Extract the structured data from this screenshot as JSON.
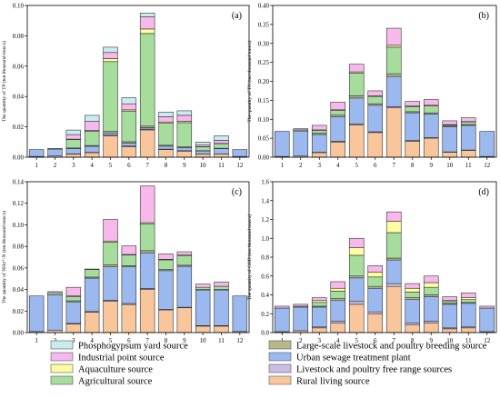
{
  "colors": {
    "Phosphogypsum yard source": "#c9ecf1",
    "Industrial point source": "#f7b8ec",
    "Aquaculture source": "#fdfda0",
    "Agricultural source": "#a6dd9d",
    "Large-scale livestock and poultry breeding source": "#b5b98a",
    "Urban sewage treatment plant": "#9bb8ef",
    "Livestock and poultry free range sources": "#cbbde4",
    "Rural living source": "#f9c59a"
  },
  "legend": [
    "Phosphogypsum yard source",
    "Industrial point source",
    "Aquaculture source",
    "Agricultural source",
    "Large-scale livestock and poultry breeding source",
    "Urban sewage treatment plant",
    "Livestock and poultry free range sources",
    "Rural living source"
  ],
  "chart_data": [
    {
      "type": "bar",
      "panel": "(a)",
      "ylabel": "The quantity of TP (ten thousand tons/a)",
      "categories": [
        "1",
        "2",
        "3",
        "4",
        "5",
        "6",
        "7",
        "8",
        "9",
        "10",
        "11",
        "12"
      ],
      "ylim": [
        0,
        0.1
      ],
      "yticks": [
        "0.00",
        "0.02",
        "0.04",
        "0.06",
        "0.08",
        "0.10"
      ],
      "yticks_v": [
        0,
        0.02,
        0.04,
        0.06,
        0.08,
        0.1
      ],
      "series": [
        {
          "name": "Rural living source",
          "values": [
            0.0005,
            0.0008,
            0.002,
            0.003,
            0.014,
            0.007,
            0.018,
            0.005,
            0.004,
            0.002,
            0.002,
            0.0005
          ]
        },
        {
          "name": "Livestock and poultry free range sources",
          "values": [
            0,
            0,
            0.0002,
            0.0002,
            0.0005,
            0.0004,
            0.0005,
            0.0003,
            0.0003,
            0.0001,
            0.0001,
            0
          ]
        },
        {
          "name": "Urban sewage treatment plant",
          "values": [
            0.0045,
            0.0045,
            0.0035,
            0.004,
            0.0015,
            0.002,
            0.001,
            0.002,
            0.002,
            0.002,
            0.0035,
            0.0045
          ]
        },
        {
          "name": "Large-scale livestock and poultry breeding source",
          "values": [
            0,
            0,
            0.0004,
            0.0005,
            0.001,
            0.0008,
            0.001,
            0.0006,
            0.0005,
            0.0002,
            0.0003,
            0
          ]
        },
        {
          "name": "Agricultural source",
          "values": [
            0,
            0.0005,
            0.0055,
            0.0095,
            0.046,
            0.02,
            0.061,
            0.0145,
            0.016,
            0.0025,
            0.003,
            0
          ]
        },
        {
          "name": "Aquaculture source",
          "values": [
            0,
            0,
            0.0003,
            0.0004,
            0.002,
            0.001,
            0.003,
            0.0008,
            0.0008,
            0.0002,
            0.0002,
            0
          ]
        },
        {
          "name": "Industrial point source",
          "values": [
            0,
            0,
            0.003,
            0.006,
            0.004,
            0.004,
            0.008,
            0.0035,
            0.004,
            0.001,
            0.002,
            0
          ]
        },
        {
          "name": "Phosphogypsum yard source",
          "values": [
            0,
            0,
            0.003,
            0.004,
            0.0035,
            0.004,
            0.0025,
            0.003,
            0.003,
            0.002,
            0.003,
            0
          ]
        }
      ]
    },
    {
      "type": "bar",
      "panel": "(b)",
      "ylabel": "The quantity of TN (ten thousand tons/a)",
      "categories": [
        "1",
        "2",
        "3",
        "4",
        "5",
        "6",
        "7",
        "8",
        "9",
        "10",
        "11",
        "12"
      ],
      "ylim": [
        0,
        0.4
      ],
      "yticks": [
        "0.00",
        "0.05",
        "0.10",
        "0.15",
        "0.20",
        "0.25",
        "0.30",
        "0.35",
        "0.40"
      ],
      "yticks_v": [
        0,
        0.05,
        0.1,
        0.15,
        0.2,
        0.25,
        0.3,
        0.35,
        0.4
      ],
      "series": [
        {
          "name": "Rural living source",
          "values": [
            0.002,
            0.003,
            0.012,
            0.04,
            0.085,
            0.065,
            0.13,
            0.042,
            0.05,
            0.013,
            0.018,
            0.002
          ]
        },
        {
          "name": "Livestock and poultry free range sources",
          "values": [
            0,
            0,
            0.001,
            0.002,
            0.003,
            0.002,
            0.003,
            0.002,
            0.002,
            0.001,
            0.001,
            0
          ]
        },
        {
          "name": "Urban sewage treatment plant",
          "values": [
            0.066,
            0.066,
            0.047,
            0.065,
            0.068,
            0.07,
            0.08,
            0.073,
            0.062,
            0.066,
            0.065,
            0.066
          ]
        },
        {
          "name": "Large-scale livestock and poultry breeding source",
          "values": [
            0,
            0,
            0.003,
            0.004,
            0.006,
            0.004,
            0.007,
            0.003,
            0.003,
            0.002,
            0.002,
            0
          ]
        },
        {
          "name": "Agricultural source",
          "values": [
            0,
            0.003,
            0.008,
            0.012,
            0.06,
            0.019,
            0.07,
            0.013,
            0.018,
            0.003,
            0.007,
            0
          ]
        },
        {
          "name": "Aquaculture source",
          "values": [
            0,
            0,
            0.001,
            0.002,
            0.003,
            0.002,
            0.005,
            0.002,
            0.002,
            0.001,
            0.001,
            0
          ]
        },
        {
          "name": "Industrial point source",
          "values": [
            0,
            0.003,
            0.012,
            0.02,
            0.02,
            0.013,
            0.045,
            0.012,
            0.015,
            0.01,
            0.01,
            0
          ]
        },
        {
          "name": "Phosphogypsum yard source",
          "values": [
            0,
            0,
            0,
            0,
            0,
            0,
            0,
            0,
            0,
            0,
            0,
            0
          ]
        }
      ]
    },
    {
      "type": "bar",
      "panel": "(c)",
      "ylabel": "The quantity of NH4⁺-N (ten thousand tons/a)",
      "categories": [
        "1",
        "2",
        "3",
        "4",
        "5",
        "6",
        "7",
        "8",
        "9",
        "10",
        "11",
        "12"
      ],
      "ylim": [
        0,
        0.14
      ],
      "yticks": [
        "0.00",
        "0.02",
        "0.04",
        "0.06",
        "0.08",
        "0.10",
        "0.12",
        "0.14"
      ],
      "yticks_v": [
        0,
        0.02,
        0.04,
        0.06,
        0.08,
        0.1,
        0.12,
        0.14
      ],
      "series": [
        {
          "name": "Rural living source",
          "values": [
            0.001,
            0.002,
            0.008,
            0.019,
            0.029,
            0.026,
            0.04,
            0.021,
            0.023,
            0.006,
            0.006,
            0.001
          ]
        },
        {
          "name": "Livestock and poultry free range sources",
          "values": [
            0,
            0,
            0.0005,
            0.0005,
            0.001,
            0.001,
            0.001,
            0.0005,
            0.0005,
            0.0005,
            0.0005,
            0
          ]
        },
        {
          "name": "Urban sewage treatment plant",
          "values": [
            0.033,
            0.033,
            0.02,
            0.031,
            0.031,
            0.034,
            0.033,
            0.036,
            0.038,
            0.033,
            0.033,
            0.033
          ]
        },
        {
          "name": "Large-scale livestock and poultry breeding source",
          "values": [
            0,
            0,
            0.001,
            0.001,
            0.002,
            0.001,
            0.002,
            0.001,
            0.001,
            0.0005,
            0.0005,
            0
          ]
        },
        {
          "name": "Agricultural source",
          "values": [
            0,
            0.002,
            0.004,
            0.007,
            0.021,
            0.01,
            0.025,
            0.009,
            0.009,
            0.002,
            0.003,
            0
          ]
        },
        {
          "name": "Aquaculture source",
          "values": [
            0,
            0,
            0.0005,
            0.0005,
            0.001,
            0.0005,
            0.001,
            0.0005,
            0.0005,
            0,
            0,
            0
          ]
        },
        {
          "name": "Industrial point source",
          "values": [
            0,
            0.001,
            0.008,
            0,
            0.02,
            0.008,
            0.034,
            0.005,
            0.003,
            0.003,
            0.004,
            0
          ]
        },
        {
          "name": "Phosphogypsum yard source",
          "values": [
            0,
            0,
            0,
            0,
            0,
            0,
            0,
            0,
            0,
            0,
            0,
            0
          ]
        }
      ]
    },
    {
      "type": "bar",
      "panel": "(d)",
      "ylabel": "The quantity of COD (ten thousand tons/a)",
      "categories": [
        "1",
        "2",
        "3",
        "4",
        "5",
        "6",
        "7",
        "8",
        "9",
        "10",
        "11",
        "12"
      ],
      "ylim": [
        0,
        1.6
      ],
      "yticks": [
        "0.0",
        "0.2",
        "0.4",
        "0.6",
        "0.8",
        "1.0",
        "1.2",
        "1.4",
        "1.6"
      ],
      "yticks_v": [
        0,
        0.2,
        0.4,
        0.6,
        0.8,
        1.0,
        1.2,
        1.4,
        1.6
      ],
      "series": [
        {
          "name": "Rural living source",
          "values": [
            0.01,
            0.02,
            0.05,
            0.1,
            0.3,
            0.2,
            0.49,
            0.08,
            0.1,
            0.04,
            0.05,
            0.01
          ]
        },
        {
          "name": "Livestock and poultry free range sources",
          "values": [
            0,
            0,
            0.01,
            0.02,
            0.03,
            0.02,
            0.03,
            0.02,
            0.02,
            0.01,
            0.01,
            0
          ]
        },
        {
          "name": "Urban sewage treatment plant",
          "values": [
            0.25,
            0.25,
            0.21,
            0.22,
            0.25,
            0.25,
            0.25,
            0.25,
            0.26,
            0.25,
            0.25,
            0.25
          ]
        },
        {
          "name": "Large-scale livestock and poultry breeding source",
          "values": [
            0,
            0,
            0.01,
            0.02,
            0.02,
            0.02,
            0.02,
            0.02,
            0.02,
            0.01,
            0.01,
            0
          ]
        },
        {
          "name": "Agricultural source",
          "values": [
            0,
            0.01,
            0.04,
            0.08,
            0.22,
            0.1,
            0.27,
            0.06,
            0.08,
            0.02,
            0.03,
            0
          ]
        },
        {
          "name": "Aquaculture source",
          "values": [
            0,
            0,
            0.02,
            0.03,
            0.08,
            0.05,
            0.12,
            0.04,
            0.05,
            0.01,
            0.02,
            0
          ]
        },
        {
          "name": "Industrial point source",
          "values": [
            0.02,
            0.02,
            0.03,
            0.07,
            0.1,
            0.07,
            0.1,
            0.05,
            0.07,
            0.04,
            0.05,
            0.02
          ]
        },
        {
          "name": "Phosphogypsum yard source",
          "values": [
            0,
            0,
            0,
            0,
            0,
            0,
            0,
            0,
            0,
            0,
            0,
            0
          ]
        }
      ]
    }
  ]
}
